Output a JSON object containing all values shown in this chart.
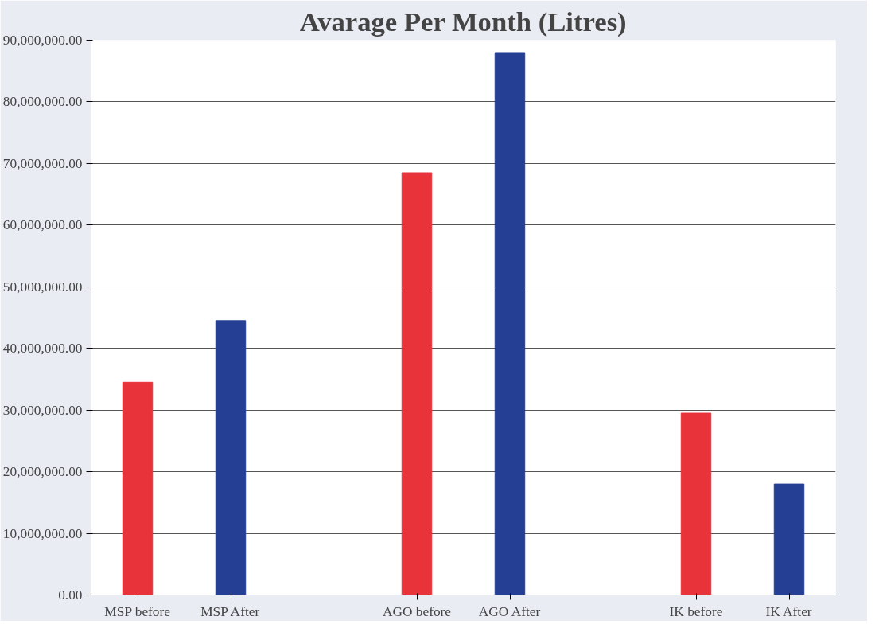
{
  "chart_data": {
    "type": "bar",
    "title": "Avarage Per Month (Litres)",
    "categories": [
      "MSP before",
      "MSP After",
      null,
      "AGO before",
      "AGO After",
      null,
      "IK before",
      "IK After"
    ],
    "values": [
      34500000,
      44500000,
      null,
      68500000,
      88000000,
      null,
      29500000,
      18000000
    ],
    "colors": [
      "#e8333a",
      "#253f94",
      "#e8333a",
      "#e8333a",
      "#253f94",
      "#e8333a",
      "#e8333a",
      "#253f94"
    ],
    "ylim": [
      0,
      90000000
    ],
    "yticks": [
      {
        "value": 0,
        "label": "0.00"
      },
      {
        "value": 10000000,
        "label": "10,000,000.00"
      },
      {
        "value": 20000000,
        "label": "20,000,000.00"
      },
      {
        "value": 30000000,
        "label": "30,000,000.00"
      },
      {
        "value": 40000000,
        "label": "40,000,000.00"
      },
      {
        "value": 50000000,
        "label": "50,000,000.00"
      },
      {
        "value": 60000000,
        "label": "60,000,000.00"
      },
      {
        "value": 70000000,
        "label": "70,000,000.00"
      },
      {
        "value": 80000000,
        "label": "80,000,000.00"
      },
      {
        "value": 90000000,
        "label": "90,000,000.00"
      }
    ],
    "grid": "y"
  }
}
